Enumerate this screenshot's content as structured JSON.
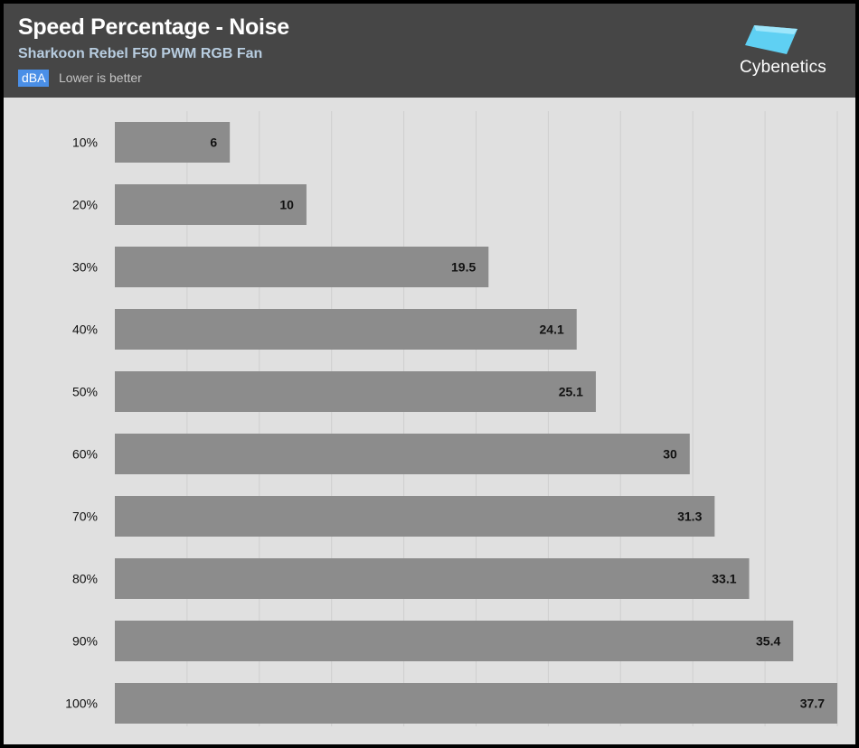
{
  "header": {
    "title": "Speed Percentage - Noise",
    "subtitle": "Sharkoon Rebel F50 PWM RGB Fan",
    "unit_badge": "dBA",
    "note": "Lower is better",
    "brand": "Cybenetics"
  },
  "colors": {
    "header_bg": "#464646",
    "plot_bg": "#e0e0e0",
    "bar": "#8c8c8c",
    "badge": "#4a8fe7",
    "logo": "#5fd0f3"
  },
  "chart_data": {
    "type": "bar",
    "orientation": "horizontal",
    "categories": [
      "10%",
      "20%",
      "30%",
      "40%",
      "50%",
      "60%",
      "70%",
      "80%",
      "90%",
      "100%"
    ],
    "values": [
      6,
      10,
      19.5,
      24.1,
      25.1,
      30,
      31.3,
      33.1,
      35.4,
      37.7
    ],
    "xlim": [
      0,
      37.7
    ],
    "grid": true,
    "legend": "none"
  }
}
